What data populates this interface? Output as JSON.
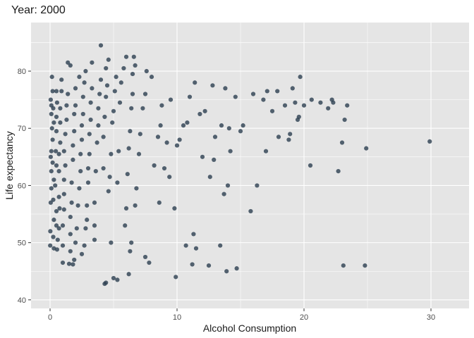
{
  "chart_data": {
    "type": "scatter",
    "title": "Year: 2000",
    "xlabel": "Alcohol Consumption",
    "ylabel": "Life expectancy",
    "xlim": [
      -1.5,
      33
    ],
    "ylim": [
      38.5,
      88.5
    ],
    "x_ticks": [
      0,
      10,
      20,
      30
    ],
    "y_ticks": [
      40,
      50,
      60,
      70,
      80
    ],
    "grid": true,
    "legend": "none",
    "colors": {
      "panel_background": "#e5e5e5",
      "grid_major": "#ffffff",
      "point": "#2c3e50"
    },
    "points": [
      [
        0.01,
        49.5
      ],
      [
        0.02,
        52.0
      ],
      [
        0.05,
        57.0
      ],
      [
        0.1,
        59.5
      ],
      [
        0.1,
        62.5
      ],
      [
        0.05,
        65.0
      ],
      [
        0.1,
        66.0
      ],
      [
        0.2,
        68.0
      ],
      [
        0.15,
        70.0
      ],
      [
        0.1,
        72.5
      ],
      [
        0.1,
        74.0
      ],
      [
        0.05,
        75.0
      ],
      [
        0.15,
        79.0
      ],
      [
        0.2,
        76.5
      ],
      [
        0.25,
        73.5
      ],
      [
        0.3,
        71.0
      ],
      [
        0.2,
        64.0
      ],
      [
        0.3,
        61.0
      ],
      [
        0.25,
        57.5
      ],
      [
        0.3,
        54.0
      ],
      [
        0.25,
        51.0
      ],
      [
        0.3,
        49.0
      ],
      [
        0.5,
        53.0
      ],
      [
        0.5,
        55.5
      ],
      [
        0.4,
        60.0
      ],
      [
        0.5,
        63.5
      ],
      [
        0.45,
        66.0
      ],
      [
        0.5,
        69.5
      ],
      [
        0.5,
        72.0
      ],
      [
        0.55,
        74.5
      ],
      [
        0.5,
        76.5
      ],
      [
        0.55,
        48.8
      ],
      [
        0.6,
        50.5
      ],
      [
        0.7,
        52.5
      ],
      [
        0.75,
        56.0
      ],
      [
        0.7,
        58.0
      ],
      [
        0.7,
        62.5
      ],
      [
        0.7,
        65.5
      ],
      [
        0.8,
        67.5
      ],
      [
        0.8,
        71.0
      ],
      [
        0.8,
        73.5
      ],
      [
        0.9,
        76.5
      ],
      [
        0.9,
        78.5
      ],
      [
        1.0,
        46.5
      ],
      [
        1.0,
        49.5
      ],
      [
        1.0,
        53.0
      ],
      [
        1.1,
        55.8
      ],
      [
        1.1,
        58.5
      ],
      [
        1.1,
        61.0
      ],
      [
        1.2,
        63.5
      ],
      [
        1.1,
        66.0
      ],
      [
        1.2,
        69.0
      ],
      [
        1.3,
        71.5
      ],
      [
        1.3,
        74.0
      ],
      [
        1.4,
        76.0
      ],
      [
        1.4,
        81.5
      ],
      [
        1.5,
        46.3
      ],
      [
        1.6,
        48.5
      ],
      [
        1.6,
        51.5
      ],
      [
        1.6,
        54.5
      ],
      [
        1.7,
        57.0
      ],
      [
        1.7,
        60.5
      ],
      [
        1.8,
        64.5
      ],
      [
        1.8,
        67.0
      ],
      [
        1.9,
        69.5
      ],
      [
        1.9,
        72.5
      ],
      [
        2.0,
        74.0
      ],
      [
        2.0,
        77.0
      ],
      [
        1.6,
        81.0
      ],
      [
        1.8,
        46.2
      ],
      [
        1.9,
        47.0
      ],
      [
        2.0,
        50.0
      ],
      [
        2.1,
        52.5
      ],
      [
        2.2,
        56.5
      ],
      [
        2.3,
        59.5
      ],
      [
        2.4,
        62.5
      ],
      [
        2.4,
        65.5
      ],
      [
        2.5,
        68.0
      ],
      [
        2.5,
        70.5
      ],
      [
        2.6,
        72.5
      ],
      [
        2.6,
        75.5
      ],
      [
        2.7,
        78.0
      ],
      [
        2.8,
        80.0
      ],
      [
        2.3,
        79.0
      ],
      [
        2.5,
        48.0
      ],
      [
        2.7,
        49.5
      ],
      [
        2.8,
        52.5
      ],
      [
        2.9,
        54.0
      ],
      [
        2.9,
        56.5
      ],
      [
        3.0,
        60.5
      ],
      [
        3.0,
        63.0
      ],
      [
        3.1,
        65.5
      ],
      [
        3.1,
        69.0
      ],
      [
        3.2,
        71.5
      ],
      [
        3.2,
        74.5
      ],
      [
        3.3,
        77.0
      ],
      [
        3.3,
        81.5
      ],
      [
        3.5,
        50.5
      ],
      [
        3.5,
        53.0
      ],
      [
        3.5,
        57.0
      ],
      [
        3.6,
        62.5
      ],
      [
        3.7,
        67.5
      ],
      [
        3.8,
        70.5
      ],
      [
        3.8,
        73.5
      ],
      [
        3.9,
        76.0
      ],
      [
        4.0,
        78.5
      ],
      [
        4.0,
        84.5
      ],
      [
        4.2,
        63.0
      ],
      [
        4.2,
        68.5
      ],
      [
        4.3,
        72.0
      ],
      [
        4.4,
        75.5
      ],
      [
        4.5,
        77.5
      ],
      [
        4.4,
        80.5
      ],
      [
        4.6,
        82.0
      ],
      [
        4.3,
        42.8
      ],
      [
        4.4,
        43.0
      ],
      [
        4.6,
        59.0
      ],
      [
        4.7,
        61.5
      ],
      [
        4.8,
        65.5
      ],
      [
        4.9,
        71.0
      ],
      [
        5.0,
        73.0
      ],
      [
        5.1,
        76.5
      ],
      [
        5.2,
        79.0
      ],
      [
        4.8,
        50.0
      ],
      [
        5.0,
        43.8
      ],
      [
        5.3,
        43.5
      ],
      [
        5.3,
        60.5
      ],
      [
        5.4,
        66.0
      ],
      [
        5.5,
        74.5
      ],
      [
        5.6,
        78.0
      ],
      [
        5.8,
        80.5
      ],
      [
        6.0,
        82.5
      ],
      [
        5.9,
        53.0
      ],
      [
        6.0,
        56.0
      ],
      [
        6.1,
        62.0
      ],
      [
        6.2,
        66.5
      ],
      [
        6.3,
        69.5
      ],
      [
        6.4,
        73.5
      ],
      [
        6.5,
        76.0
      ],
      [
        6.5,
        79.5
      ],
      [
        6.7,
        81.0
      ],
      [
        6.6,
        82.5
      ],
      [
        6.2,
        44.5
      ],
      [
        6.3,
        48.5
      ],
      [
        6.4,
        50.0
      ],
      [
        6.7,
        56.5
      ],
      [
        6.8,
        59.5
      ],
      [
        7.0,
        65.5
      ],
      [
        7.1,
        69.0
      ],
      [
        7.3,
        73.5
      ],
      [
        7.5,
        76.0
      ],
      [
        7.6,
        80.0
      ],
      [
        7.8,
        46.5
      ],
      [
        7.5,
        47.5
      ],
      [
        8.0,
        79.0
      ],
      [
        8.2,
        63.5
      ],
      [
        8.5,
        68.5
      ],
      [
        8.7,
        70.5
      ],
      [
        8.8,
        74.0
      ],
      [
        8.6,
        57.0
      ],
      [
        9.0,
        63.0
      ],
      [
        9.2,
        67.5
      ],
      [
        9.5,
        75.0
      ],
      [
        9.4,
        61.5
      ],
      [
        9.8,
        56.0
      ],
      [
        9.9,
        44.0
      ],
      [
        10.0,
        67.0
      ],
      [
        10.2,
        68.0
      ],
      [
        10.5,
        70.5
      ],
      [
        10.7,
        49.5
      ],
      [
        10.8,
        71.0
      ],
      [
        11.0,
        75.5
      ],
      [
        11.2,
        46.2
      ],
      [
        11.3,
        51.5
      ],
      [
        11.4,
        78.0
      ],
      [
        11.5,
        49.0
      ],
      [
        11.8,
        72.5
      ],
      [
        12.0,
        65.0
      ],
      [
        12.2,
        73.0
      ],
      [
        12.5,
        46.0
      ],
      [
        12.6,
        61.5
      ],
      [
        12.8,
        77.5
      ],
      [
        12.9,
        64.5
      ],
      [
        13.0,
        68.5
      ],
      [
        13.4,
        49.5
      ],
      [
        13.5,
        70.5
      ],
      [
        13.7,
        58.5
      ],
      [
        13.8,
        77.0
      ],
      [
        13.9,
        45.0
      ],
      [
        14.0,
        60.0
      ],
      [
        14.1,
        70.0
      ],
      [
        14.2,
        66.0
      ],
      [
        14.6,
        75.5
      ],
      [
        14.7,
        45.5
      ],
      [
        15.0,
        69.5
      ],
      [
        15.2,
        70.5
      ],
      [
        15.8,
        55.5
      ],
      [
        16.0,
        76.0
      ],
      [
        16.3,
        60.0
      ],
      [
        16.8,
        75.0
      ],
      [
        17.0,
        66.0
      ],
      [
        17.1,
        76.5
      ],
      [
        17.5,
        73.0
      ],
      [
        17.9,
        76.5
      ],
      [
        18.0,
        68.5
      ],
      [
        18.5,
        74.0
      ],
      [
        18.8,
        68.0
      ],
      [
        18.9,
        69.0
      ],
      [
        19.1,
        77.0
      ],
      [
        19.3,
        74.5
      ],
      [
        19.5,
        71.5
      ],
      [
        19.6,
        72.0
      ],
      [
        19.7,
        79.0
      ],
      [
        20.0,
        74.0
      ],
      [
        20.5,
        63.5
      ],
      [
        20.6,
        75.0
      ],
      [
        21.3,
        74.5
      ],
      [
        21.9,
        73.5
      ],
      [
        22.2,
        75.0
      ],
      [
        22.3,
        74.5
      ],
      [
        22.7,
        62.5
      ],
      [
        23.0,
        67.5
      ],
      [
        23.1,
        46.0
      ],
      [
        23.2,
        71.5
      ],
      [
        23.4,
        74.0
      ],
      [
        24.8,
        46.0
      ],
      [
        24.9,
        66.5
      ],
      [
        29.9,
        67.7
      ]
    ]
  }
}
